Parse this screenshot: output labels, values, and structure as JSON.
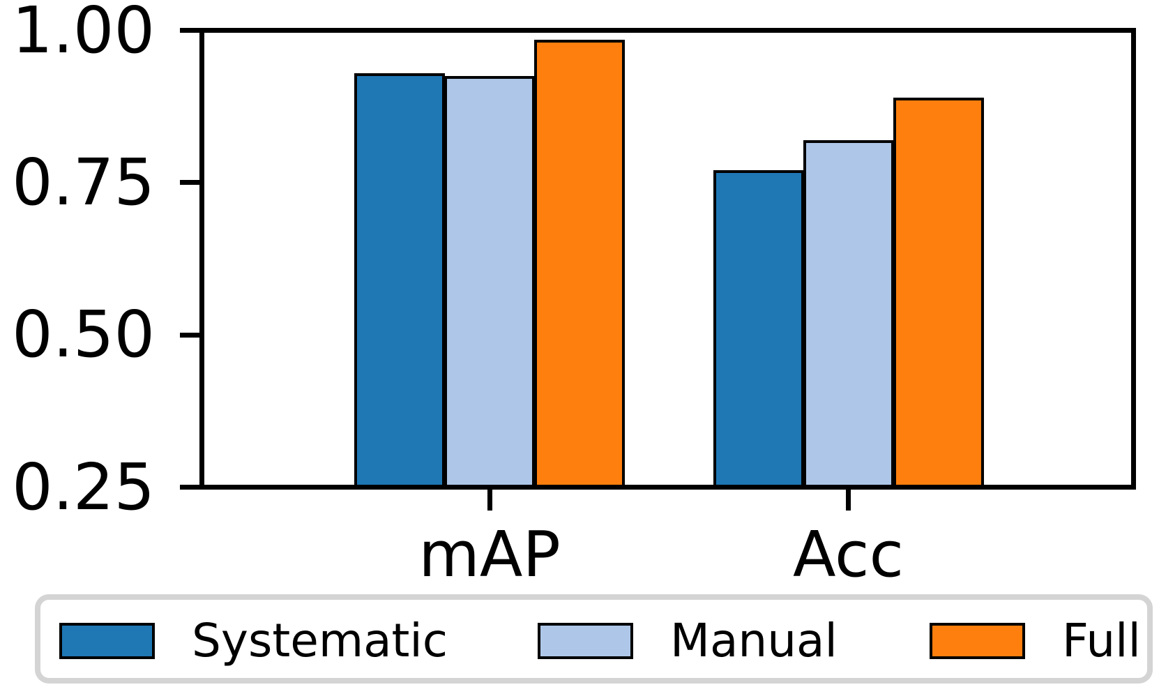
{
  "chart_data": {
    "type": "bar",
    "title": "",
    "xlabel": "",
    "ylabel": "",
    "categories": [
      "mAP",
      "Acc"
    ],
    "series": [
      {
        "name": "Systematic",
        "color": "#1f77b4",
        "values": [
          0.93,
          0.77
        ]
      },
      {
        "name": "Manual",
        "color": "#aec7e8",
        "values": [
          0.925,
          0.82
        ]
      },
      {
        "name": "Full",
        "color": "#ff7f0e",
        "values": [
          0.985,
          0.89
        ]
      }
    ],
    "ylim": [
      0.25,
      1.0
    ],
    "ytick_values": [
      0.25,
      0.5,
      0.75,
      1.0
    ],
    "ytick_labels": [
      "0.25",
      "0.50",
      "0.75",
      "1.00"
    ],
    "grid": false,
    "bar_edge_color": "#000000",
    "legend_position": "bottom",
    "legend_entries": [
      "Systematic",
      "Manual",
      "Full"
    ]
  }
}
